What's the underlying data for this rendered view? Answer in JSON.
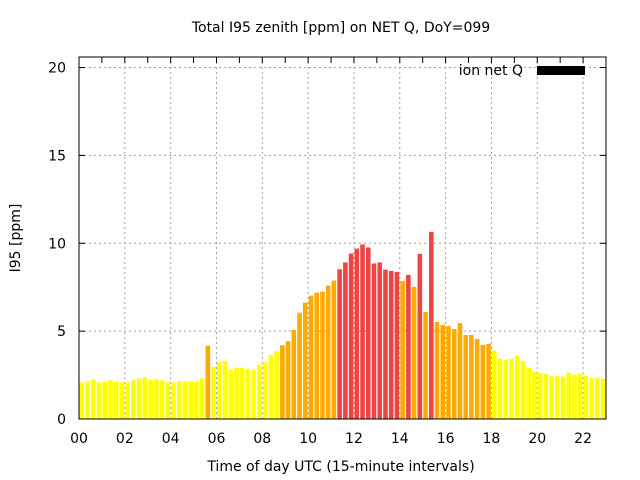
{
  "chart_data": {
    "type": "bar",
    "title": "Total I95 zenith [ppm] on NET Q, DoY=099",
    "xlabel": "Time of day UTC (15-minute intervals)",
    "ylabel": "I95 [ppm]",
    "ylim": [
      0,
      20.6
    ],
    "xlim_hours": [
      0,
      22.75
    ],
    "yticks": [
      0,
      5,
      10,
      15,
      20
    ],
    "ytick_labels": [
      "0",
      "5",
      "10",
      "15",
      "20"
    ],
    "xticks_hours": [
      0,
      2,
      4,
      6,
      8,
      10,
      12,
      14,
      16,
      18,
      20,
      22
    ],
    "xtick_labels": [
      "00",
      "02",
      "04",
      "06",
      "08",
      "10",
      "12",
      "14",
      "16",
      "18",
      "20",
      "22"
    ],
    "grid": true,
    "interval_minutes": 15,
    "legend": {
      "label": "ion net Q",
      "position": "top-right",
      "color": "#000000"
    },
    "color_levels": [
      {
        "name": "low",
        "below": 4,
        "color": "#ffff00"
      },
      {
        "name": "moderate",
        "below": 8,
        "color": "#ffaa00"
      },
      {
        "name": "high",
        "below": null,
        "color": "#ee4444"
      }
    ],
    "values": [
      2.08,
      2.14,
      2.23,
      2.08,
      2.14,
      2.2,
      2.14,
      2.08,
      2.08,
      2.2,
      2.31,
      2.37,
      2.25,
      2.25,
      2.2,
      2.08,
      2.08,
      2.14,
      2.14,
      2.14,
      2.14,
      2.31,
      4.17,
      2.96,
      3.24,
      3.31,
      2.8,
      2.91,
      2.91,
      2.85,
      2.8,
      3.08,
      3.24,
      3.64,
      3.86,
      4.2,
      4.43,
      5.07,
      6.05,
      6.62,
      7.02,
      7.19,
      7.25,
      7.59,
      7.88,
      8.52,
      8.91,
      9.42,
      9.7,
      9.93,
      9.76,
      8.85,
      8.91,
      8.5,
      8.43,
      8.37,
      7.86,
      8.2,
      7.52,
      9.4,
      6.09,
      10.65,
      5.52,
      5.36,
      5.29,
      5.12,
      5.46,
      4.78,
      4.78,
      4.55,
      4.22,
      4.28,
      3.89,
      3.43,
      3.37,
      3.43,
      3.6,
      3.31,
      2.92,
      2.69,
      2.63,
      2.58,
      2.46,
      2.46,
      2.41,
      2.63,
      2.52,
      2.58,
      2.46,
      2.35,
      2.35,
      2.29
    ]
  }
}
